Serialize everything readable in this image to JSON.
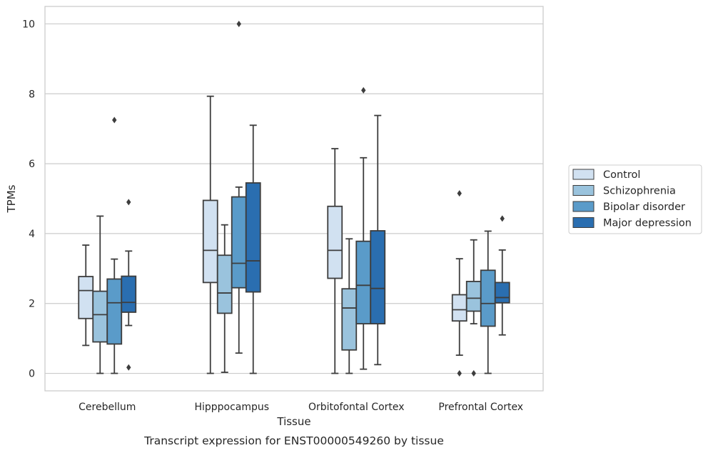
{
  "caption": "Transcript expression for ENST00000549260 by tissue",
  "chart_data": {
    "type": "box",
    "title": "",
    "xlabel": "Tissue",
    "ylabel": "TPMs",
    "ylim": [
      -0.5,
      10.5
    ],
    "yticks": [
      "0",
      "2",
      "4",
      "6",
      "8",
      "10"
    ],
    "grid": "horizontal",
    "legend_position": "right",
    "categories": [
      "Cerebellum",
      "Hipppocampus",
      "Orbitofontal Cortex",
      "Prefrontal Cortex"
    ],
    "series": [
      {
        "name": "Control",
        "color": "#d1e1f1",
        "boxes": [
          {
            "whislo": 0.8,
            "q1": 1.57,
            "med": 2.37,
            "q3": 2.77,
            "whishi": 3.67,
            "fliers": []
          },
          {
            "whislo": 0.0,
            "q1": 2.6,
            "med": 3.52,
            "q3": 4.95,
            "whishi": 7.93,
            "fliers": []
          },
          {
            "whislo": 0.0,
            "q1": 2.72,
            "med": 3.52,
            "q3": 4.78,
            "whishi": 6.43,
            "fliers": []
          },
          {
            "whislo": 0.52,
            "q1": 1.5,
            "med": 1.82,
            "q3": 2.25,
            "whishi": 3.28,
            "fliers": [
              5.15,
              0.0
            ]
          }
        ]
      },
      {
        "name": "Schizophrenia",
        "color": "#9ac3dd",
        "boxes": [
          {
            "whislo": 0.0,
            "q1": 0.9,
            "med": 1.68,
            "q3": 2.35,
            "whishi": 4.5,
            "fliers": []
          },
          {
            "whislo": 0.03,
            "q1": 1.72,
            "med": 2.3,
            "q3": 3.38,
            "whishi": 4.25,
            "fliers": []
          },
          {
            "whislo": 0.0,
            "q1": 0.67,
            "med": 1.87,
            "q3": 2.42,
            "whishi": 3.85,
            "fliers": []
          },
          {
            "whislo": 1.42,
            "q1": 1.78,
            "med": 2.15,
            "q3": 2.63,
            "whishi": 3.82,
            "fliers": [
              0.0
            ]
          }
        ]
      },
      {
        "name": "Bipolar disorder",
        "color": "#5a9bc9",
        "boxes": [
          {
            "whislo": 0.0,
            "q1": 0.84,
            "med": 2.02,
            "q3": 2.7,
            "whishi": 3.27,
            "fliers": [
              7.25
            ]
          },
          {
            "whislo": 0.58,
            "q1": 2.45,
            "med": 3.15,
            "q3": 5.05,
            "whishi": 5.33,
            "fliers": [
              10.0
            ]
          },
          {
            "whislo": 0.12,
            "q1": 1.42,
            "med": 2.52,
            "q3": 3.78,
            "whishi": 6.17,
            "fliers": [
              8.1
            ]
          },
          {
            "whislo": 0.0,
            "q1": 1.35,
            "med": 2.0,
            "q3": 2.95,
            "whishi": 4.07,
            "fliers": []
          }
        ]
      },
      {
        "name": "Major depression",
        "color": "#2a6eb0",
        "boxes": [
          {
            "whislo": 1.37,
            "q1": 1.75,
            "med": 2.03,
            "q3": 2.78,
            "whishi": 3.5,
            "fliers": [
              4.9,
              0.17
            ]
          },
          {
            "whislo": 0.0,
            "q1": 2.33,
            "med": 3.22,
            "q3": 5.45,
            "whishi": 7.1,
            "fliers": []
          },
          {
            "whislo": 0.25,
            "q1": 1.42,
            "med": 2.43,
            "q3": 4.08,
            "whishi": 7.38,
            "fliers": []
          },
          {
            "whislo": 1.1,
            "q1": 2.02,
            "med": 2.17,
            "q3": 2.6,
            "whishi": 3.53,
            "fliers": [
              4.43
            ]
          }
        ]
      }
    ]
  }
}
